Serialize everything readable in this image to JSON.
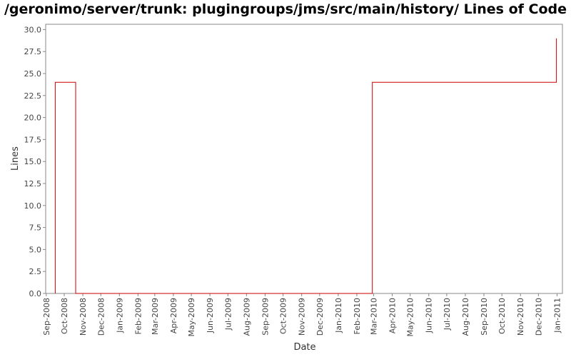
{
  "chart_data": {
    "type": "line",
    "title": "/geronimo/server/trunk: plugingroups/jms/src/main/history/ Lines of Code",
    "xlabel": "Date",
    "ylabel": "Lines",
    "ylim": [
      0,
      30
    ],
    "yticks": [
      "0.0",
      "2.5",
      "5.0",
      "7.5",
      "10.0",
      "12.5",
      "15.0",
      "17.5",
      "20.0",
      "22.5",
      "25.0",
      "27.5",
      "30.0"
    ],
    "x_ticks": [
      "Sep-2008",
      "Oct-2008",
      "Nov-2008",
      "Dec-2008",
      "Jan-2009",
      "Feb-2009",
      "Mar-2009",
      "Apr-2009",
      "May-2009",
      "Jun-2009",
      "Jul-2009",
      "Aug-2009",
      "Sep-2009",
      "Oct-2009",
      "Nov-2009",
      "Dec-2009",
      "Jan-2010",
      "Feb-2010",
      "Mar-2010",
      "Apr-2010",
      "May-2010",
      "Jun-2010",
      "Jul-2010",
      "Aug-2010",
      "Sep-2010",
      "Oct-2010",
      "Nov-2010",
      "Dec-2010",
      "Jan-2011"
    ],
    "x_range": [
      "2008-08-31",
      "2011-01-10"
    ],
    "grid": false,
    "series": [
      {
        "color": "#cc0000",
        "step": true,
        "points": [
          {
            "x": "2008-09-16",
            "y": 0
          },
          {
            "x": "2008-09-16",
            "y": 24
          },
          {
            "x": "2008-10-20",
            "y": 24
          },
          {
            "x": "2008-10-20",
            "y": 0
          },
          {
            "x": "2010-02-27",
            "y": 0
          },
          {
            "x": "2010-02-27",
            "y": 24
          },
          {
            "x": "2010-12-31",
            "y": 24
          },
          {
            "x": "2010-12-31",
            "y": 29
          }
        ]
      }
    ]
  }
}
